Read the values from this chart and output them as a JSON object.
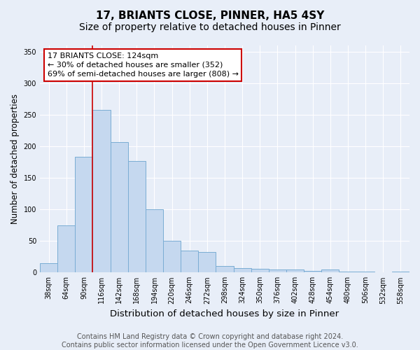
{
  "title": "17, BRIANTS CLOSE, PINNER, HA5 4SY",
  "subtitle": "Size of property relative to detached houses in Pinner",
  "xlabel": "Distribution of detached houses by size in Pinner",
  "ylabel": "Number of detached properties",
  "bin_labels": [
    "38sqm",
    "64sqm",
    "90sqm",
    "116sqm",
    "142sqm",
    "168sqm",
    "194sqm",
    "220sqm",
    "246sqm",
    "272sqm",
    "298sqm",
    "324sqm",
    "350sqm",
    "376sqm",
    "402sqm",
    "428sqm",
    "454sqm",
    "480sqm",
    "506sqm",
    "532sqm",
    "558sqm"
  ],
  "bar_heights": [
    15,
    75,
    183,
    258,
    207,
    177,
    100,
    50,
    35,
    32,
    10,
    7,
    6,
    5,
    5,
    3,
    5,
    2,
    2,
    0,
    2
  ],
  "bar_color": "#c5d8ef",
  "bar_edge_color": "#7aadd4",
  "vline_x": 2.5,
  "vline_color": "#cc0000",
  "annotation_text": "17 BRIANTS CLOSE: 124sqm\n← 30% of detached houses are smaller (352)\n69% of semi-detached houses are larger (808) →",
  "annotation_box_color": "#ffffff",
  "annotation_box_edge": "#cc0000",
  "ylim": [
    0,
    360
  ],
  "yticks": [
    0,
    50,
    100,
    150,
    200,
    250,
    300,
    350
  ],
  "background_color": "#e8eef8",
  "plot_bg_color": "#e8eef8",
  "footer_text": "Contains HM Land Registry data © Crown copyright and database right 2024.\nContains public sector information licensed under the Open Government Licence v3.0.",
  "title_fontsize": 11,
  "xlabel_fontsize": 9.5,
  "ylabel_fontsize": 8.5,
  "footer_fontsize": 7,
  "tick_fontsize": 7,
  "annot_fontsize": 8
}
